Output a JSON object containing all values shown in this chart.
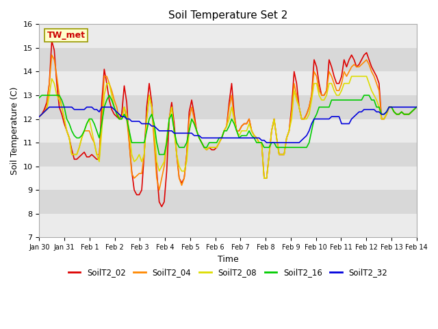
{
  "title": "Soil Temperature Set 2",
  "xlabel": "Time",
  "ylabel": "Soil Temperature (C)",
  "ylim": [
    7.0,
    16.0
  ],
  "yticks": [
    7.0,
    8.0,
    9.0,
    10.0,
    11.0,
    12.0,
    13.0,
    14.0,
    15.0,
    16.0
  ],
  "xtick_labels": [
    "Jan 30",
    "Jan 31",
    "Feb 1",
    "Feb 2",
    "Feb 3",
    "Feb 4",
    "Feb 5",
    "Feb 6",
    "Feb 7",
    "Feb 8",
    "Feb 9",
    "Feb 10",
    "Feb 11",
    "Feb 12",
    "Feb 13",
    "Feb 14"
  ],
  "series_colors": {
    "SoilT2_02": "#dd0000",
    "SoilT2_04": "#ff8800",
    "SoilT2_08": "#dddd00",
    "SoilT2_16": "#00cc00",
    "SoilT2_32": "#0000dd"
  },
  "tw_met_label": "TW_met",
  "fig_bg_color": "#ffffff",
  "plot_bg_color": "#ffffff",
  "stripe_light": "#ebebeb",
  "stripe_dark": "#d8d8d8",
  "SoilT2_02": [
    12.1,
    12.2,
    12.4,
    12.7,
    13.5,
    15.3,
    14.9,
    13.5,
    12.5,
    12.2,
    11.8,
    11.5,
    11.2,
    10.7,
    10.3,
    10.3,
    10.4,
    10.5,
    10.6,
    10.4,
    10.4,
    10.5,
    10.4,
    10.3,
    10.3,
    12.7,
    14.1,
    13.5,
    12.8,
    12.4,
    12.2,
    12.1,
    12.0,
    12.2,
    13.4,
    12.7,
    11.0,
    9.8,
    9.0,
    8.8,
    8.8,
    9.0,
    10.5,
    12.5,
    13.5,
    12.7,
    11.2,
    9.8,
    8.5,
    8.3,
    8.5,
    9.8,
    12.0,
    12.7,
    11.8,
    10.5,
    9.5,
    9.3,
    9.5,
    10.5,
    12.3,
    12.8,
    12.2,
    11.5,
    11.2,
    11.0,
    10.8,
    10.7,
    10.8,
    10.7,
    10.7,
    10.8,
    11.0,
    11.2,
    11.5,
    11.7,
    12.7,
    13.5,
    12.2,
    11.5,
    11.5,
    11.7,
    11.8,
    11.8,
    12.0,
    11.5,
    11.3,
    11.2,
    11.0,
    11.0,
    9.5,
    9.5,
    10.5,
    11.5,
    12.0,
    11.2,
    10.5,
    10.5,
    10.5,
    11.2,
    11.5,
    12.5,
    14.0,
    13.5,
    12.5,
    12.0,
    12.0,
    12.2,
    12.5,
    13.0,
    14.5,
    14.2,
    13.5,
    13.0,
    13.0,
    13.2,
    14.5,
    14.2,
    13.8,
    13.5,
    13.5,
    13.8,
    14.5,
    14.2,
    14.5,
    14.7,
    14.5,
    14.2,
    14.3,
    14.5,
    14.7,
    14.8,
    14.5,
    14.2,
    14.0,
    13.8,
    13.5,
    12.0,
    12.0,
    12.2,
    12.5,
    12.5,
    12.3,
    12.2,
    12.2,
    12.3,
    12.2,
    12.2,
    12.2,
    12.3,
    12.4,
    12.5
  ],
  "SoilT2_04": [
    12.1,
    12.2,
    12.3,
    12.5,
    13.5,
    14.7,
    14.5,
    13.8,
    13.0,
    12.5,
    12.0,
    11.5,
    11.2,
    10.5,
    10.5,
    10.5,
    10.8,
    11.2,
    11.5,
    11.5,
    11.5,
    11.2,
    11.0,
    10.5,
    10.5,
    12.0,
    13.8,
    13.8,
    13.5,
    13.2,
    12.8,
    12.5,
    12.0,
    12.0,
    12.5,
    12.0,
    11.0,
    9.7,
    9.5,
    9.6,
    9.7,
    9.7,
    10.5,
    12.0,
    13.0,
    12.5,
    11.0,
    9.5,
    9.0,
    9.5,
    10.0,
    11.0,
    12.0,
    12.5,
    11.5,
    10.5,
    9.5,
    9.2,
    9.5,
    10.5,
    12.0,
    12.5,
    12.0,
    11.5,
    11.2,
    11.0,
    10.8,
    10.7,
    10.8,
    10.8,
    10.8,
    10.8,
    11.0,
    11.2,
    11.5,
    11.7,
    12.5,
    13.0,
    12.0,
    11.5,
    11.5,
    11.7,
    11.8,
    11.8,
    12.0,
    11.5,
    11.3,
    11.2,
    11.0,
    11.0,
    9.5,
    9.5,
    10.5,
    11.5,
    12.0,
    11.2,
    10.5,
    10.5,
    10.5,
    11.2,
    11.5,
    12.3,
    13.5,
    13.0,
    12.5,
    12.0,
    12.0,
    12.2,
    12.5,
    13.0,
    14.0,
    13.8,
    13.2,
    13.0,
    13.0,
    13.2,
    14.0,
    13.8,
    13.5,
    13.2,
    13.2,
    13.5,
    14.0,
    13.8,
    14.0,
    14.2,
    14.3,
    14.2,
    14.2,
    14.3,
    14.4,
    14.5,
    14.3,
    14.0,
    13.8,
    13.5,
    13.2,
    12.0,
    12.0,
    12.2,
    12.5,
    12.5,
    12.3,
    12.2,
    12.2,
    12.3,
    12.2,
    12.2,
    12.2,
    12.3,
    12.4,
    12.5
  ],
  "SoilT2_08": [
    12.1,
    12.2,
    12.3,
    12.4,
    13.0,
    13.7,
    13.5,
    13.0,
    12.8,
    12.5,
    12.0,
    11.5,
    11.2,
    10.5,
    10.5,
    10.5,
    10.8,
    11.2,
    11.5,
    11.8,
    12.0,
    11.5,
    11.0,
    10.5,
    10.2,
    11.5,
    13.0,
    13.5,
    13.5,
    13.0,
    12.5,
    12.2,
    12.0,
    12.0,
    12.5,
    12.2,
    11.5,
    10.5,
    10.2,
    10.3,
    10.5,
    10.2,
    10.5,
    12.0,
    13.0,
    12.5,
    11.5,
    10.2,
    9.8,
    10.0,
    10.2,
    11.2,
    12.0,
    12.5,
    11.5,
    10.5,
    10.0,
    9.8,
    9.8,
    10.2,
    11.5,
    12.0,
    11.8,
    11.5,
    11.2,
    11.0,
    10.8,
    10.7,
    10.8,
    10.8,
    10.8,
    10.8,
    11.0,
    11.2,
    11.5,
    11.7,
    12.0,
    12.5,
    12.0,
    11.5,
    11.3,
    11.5,
    11.5,
    11.5,
    11.8,
    11.5,
    11.3,
    11.2,
    11.0,
    11.0,
    9.5,
    9.5,
    10.5,
    11.5,
    12.0,
    11.2,
    10.5,
    10.5,
    10.5,
    11.2,
    11.5,
    12.0,
    13.2,
    12.8,
    12.5,
    12.0,
    12.0,
    12.0,
    12.2,
    12.8,
    13.5,
    13.5,
    13.0,
    12.8,
    12.8,
    13.0,
    13.5,
    13.5,
    13.2,
    13.0,
    13.0,
    13.2,
    13.5,
    13.5,
    13.5,
    13.8,
    13.8,
    13.8,
    13.8,
    13.8,
    13.8,
    13.8,
    13.5,
    13.2,
    13.0,
    12.8,
    12.5,
    12.0,
    12.0,
    12.2,
    12.5,
    12.5,
    12.3,
    12.2,
    12.2,
    12.3,
    12.2,
    12.2,
    12.2,
    12.3,
    12.4,
    12.5
  ],
  "SoilT2_16": [
    12.9,
    13.0,
    13.0,
    13.0,
    13.0,
    13.0,
    13.0,
    13.0,
    13.0,
    12.8,
    12.5,
    12.0,
    11.8,
    11.5,
    11.3,
    11.2,
    11.2,
    11.3,
    11.5,
    11.8,
    12.0,
    12.0,
    11.8,
    11.5,
    11.2,
    11.8,
    12.5,
    12.8,
    13.0,
    12.8,
    12.5,
    12.2,
    12.0,
    12.0,
    12.2,
    12.0,
    11.5,
    11.0,
    11.0,
    11.0,
    11.0,
    11.0,
    11.0,
    11.5,
    12.0,
    12.2,
    11.8,
    11.0,
    10.5,
    10.5,
    10.5,
    11.0,
    12.0,
    12.2,
    11.5,
    11.0,
    10.8,
    10.8,
    10.8,
    11.0,
    11.5,
    12.0,
    11.8,
    11.5,
    11.2,
    11.0,
    10.8,
    10.8,
    11.0,
    11.0,
    11.0,
    11.0,
    11.2,
    11.2,
    11.5,
    11.5,
    11.7,
    12.0,
    11.8,
    11.5,
    11.2,
    11.3,
    11.3,
    11.3,
    11.5,
    11.3,
    11.2,
    11.0,
    11.0,
    11.0,
    10.8,
    10.8,
    10.8,
    11.0,
    11.0,
    10.8,
    10.8,
    10.8,
    10.8,
    10.8,
    10.8,
    10.8,
    10.8,
    10.8,
    10.8,
    10.8,
    10.8,
    10.8,
    11.0,
    11.5,
    12.0,
    12.2,
    12.5,
    12.5,
    12.5,
    12.5,
    12.5,
    12.8,
    12.8,
    12.8,
    12.8,
    12.8,
    12.8,
    12.8,
    12.8,
    12.8,
    12.8,
    12.8,
    12.8,
    12.8,
    13.0,
    13.0,
    13.0,
    12.8,
    12.8,
    12.5,
    12.5,
    12.2,
    12.2,
    12.3,
    12.5,
    12.5,
    12.3,
    12.2,
    12.2,
    12.3,
    12.2,
    12.2,
    12.2,
    12.3,
    12.4,
    12.5
  ],
  "SoilT2_32": [
    12.1,
    12.2,
    12.3,
    12.4,
    12.5,
    12.5,
    12.5,
    12.5,
    12.5,
    12.5,
    12.5,
    12.5,
    12.5,
    12.5,
    12.4,
    12.4,
    12.4,
    12.4,
    12.4,
    12.5,
    12.5,
    12.5,
    12.4,
    12.4,
    12.3,
    12.5,
    12.5,
    12.5,
    12.5,
    12.5,
    12.4,
    12.3,
    12.2,
    12.1,
    12.1,
    12.0,
    12.0,
    11.9,
    11.9,
    11.9,
    11.9,
    11.8,
    11.8,
    11.8,
    11.8,
    11.7,
    11.7,
    11.6,
    11.5,
    11.5,
    11.5,
    11.5,
    11.5,
    11.5,
    11.4,
    11.4,
    11.4,
    11.4,
    11.4,
    11.4,
    11.4,
    11.4,
    11.3,
    11.3,
    11.3,
    11.2,
    11.2,
    11.2,
    11.2,
    11.2,
    11.2,
    11.2,
    11.2,
    11.2,
    11.2,
    11.2,
    11.2,
    11.2,
    11.2,
    11.2,
    11.2,
    11.2,
    11.2,
    11.2,
    11.2,
    11.2,
    11.2,
    11.2,
    11.2,
    11.1,
    11.1,
    11.0,
    11.0,
    11.0,
    11.0,
    11.0,
    11.0,
    11.0,
    11.0,
    11.0,
    11.0,
    11.0,
    11.0,
    11.0,
    11.0,
    11.1,
    11.2,
    11.3,
    11.5,
    11.8,
    12.0,
    12.0,
    12.0,
    12.0,
    12.0,
    12.0,
    12.0,
    12.1,
    12.1,
    12.1,
    12.1,
    11.8,
    11.8,
    11.8,
    11.8,
    12.0,
    12.1,
    12.2,
    12.3,
    12.3,
    12.4,
    12.4,
    12.4,
    12.4,
    12.4,
    12.3,
    12.3,
    12.2,
    12.2,
    12.3,
    12.5,
    12.5,
    12.5,
    12.5,
    12.5,
    12.5,
    12.5,
    12.5,
    12.5,
    12.5,
    12.5,
    12.5
  ]
}
